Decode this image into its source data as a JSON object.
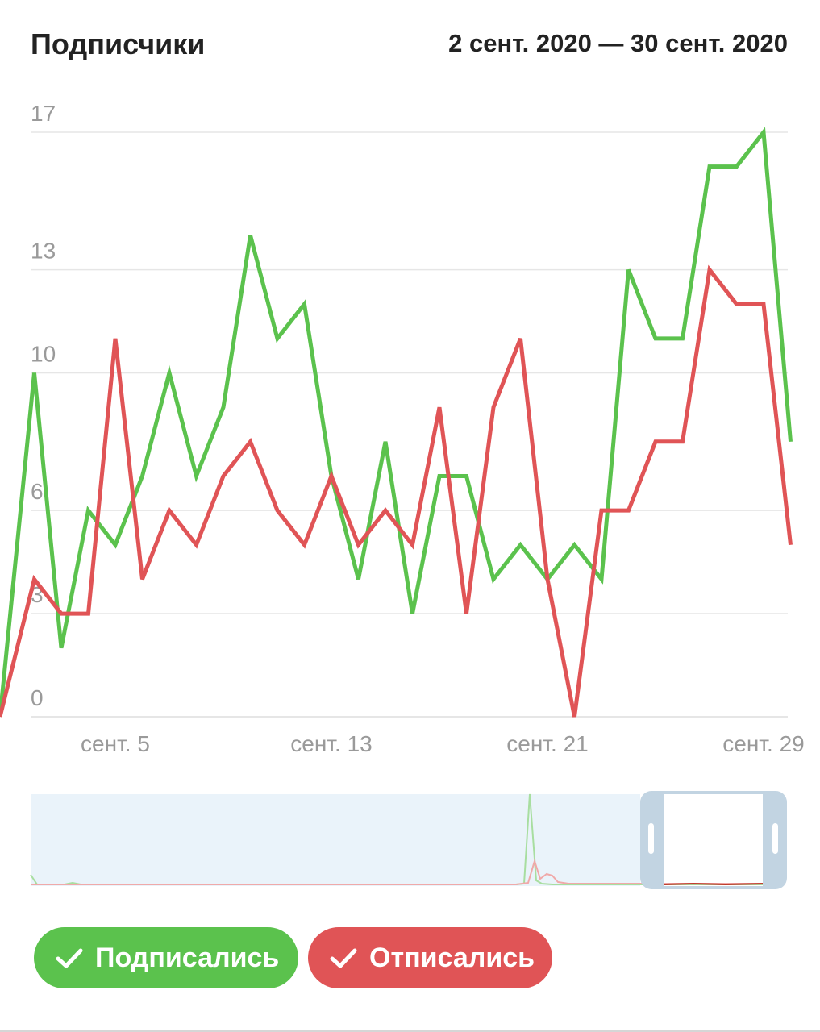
{
  "header": {
    "title": "Подписчики",
    "date_range": "2 сент. 2020 — 30 сент. 2020"
  },
  "colors": {
    "subscribed": "#5bc24d",
    "unsubscribed": "#e05456",
    "grid": "#e6e6e6",
    "axis_text": "#9a9a9a",
    "minimap_bg": "#eaf3fa",
    "minimap_handle": "#c2d4e2"
  },
  "legend": {
    "subscribed_label": "Подписались",
    "unsubscribed_label": "Отписались",
    "icon": "checkmark-icon"
  },
  "chart_data": {
    "type": "line",
    "title": "Подписчики",
    "xlabel": "",
    "ylabel": "",
    "ylim": [
      0,
      17
    ],
    "yticks": [
      0,
      3,
      6,
      10,
      13,
      17
    ],
    "x": [
      "сент. 2",
      "сент. 3",
      "сент. 4",
      "сент. 5",
      "сент. 6",
      "сент. 7",
      "сент. 8",
      "сент. 9",
      "сент. 10",
      "сент. 11",
      "сент. 12",
      "сент. 13",
      "сент. 14",
      "сент. 15",
      "сент. 16",
      "сент. 17",
      "сент. 18",
      "сент. 19",
      "сент. 20",
      "сент. 21",
      "сент. 22",
      "сент. 23",
      "сент. 24",
      "сент. 25",
      "сент. 26",
      "сент. 27",
      "сент. 28",
      "сент. 29",
      "сент. 30"
    ],
    "xticks": [
      "сент. 5",
      "сент. 13",
      "сент. 21",
      "сент. 29"
    ],
    "grid": true,
    "series": [
      {
        "name": "Подписались",
        "color": "#5bc24d",
        "values": [
          10,
          2,
          6,
          5,
          7,
          10,
          7,
          9,
          14,
          11,
          12,
          7,
          4,
          8,
          3,
          7,
          7,
          4,
          5,
          4,
          5,
          4,
          13,
          11,
          11,
          16,
          16,
          17,
          8
        ]
      },
      {
        "name": "Отписались",
        "color": "#e05456",
        "values": [
          4,
          3,
          3,
          11,
          4,
          6,
          5,
          7,
          8,
          6,
          5,
          7,
          5,
          6,
          5,
          9,
          3,
          9,
          11,
          4,
          0,
          6,
          6,
          8,
          8,
          13,
          12,
          12,
          5
        ]
      }
    ]
  }
}
